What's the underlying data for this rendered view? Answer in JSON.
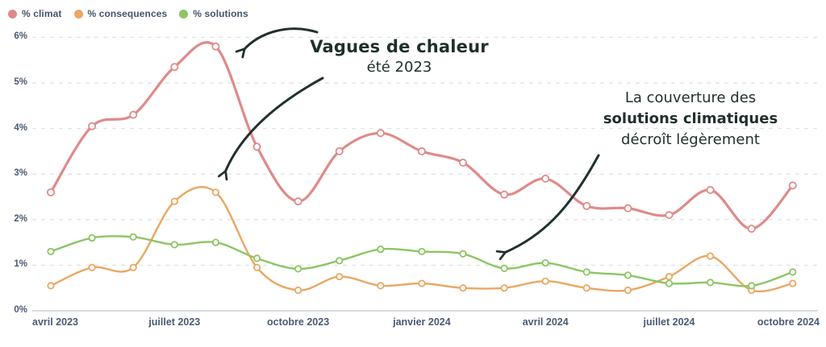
{
  "legend": {
    "items": [
      {
        "label": "% climat",
        "color": "#df8a8a"
      },
      {
        "label": "% consequences",
        "color": "#eaa763"
      },
      {
        "label": "% solutions",
        "color": "#8cc563"
      }
    ]
  },
  "annotations": {
    "heatwave": {
      "line1": "Vagues de chaleur",
      "line2": "été 2023"
    },
    "solutions": {
      "line1": "La couverture des",
      "line2": "solutions climatiques",
      "line3": "décroît légèrement"
    },
    "arrow_color": "#21312e"
  },
  "chart_data": {
    "type": "line",
    "title": "",
    "xlabel": "",
    "ylabel": "",
    "y_unit": "%",
    "ylim": [
      0,
      6
    ],
    "grid": "horizontal dashed",
    "legend_position": "top-left",
    "curve": "smooth",
    "markers": "open-circle",
    "x": [
      "avril 2023",
      "mai 2023",
      "juin 2023",
      "juillet 2023",
      "août 2023",
      "septembre 2023",
      "octobre 2023",
      "novembre 2023",
      "décembre 2023",
      "janvier 2024",
      "février 2024",
      "mars 2024",
      "avril 2024",
      "mai 2024",
      "juin 2024",
      "juillet 2024",
      "août 2024",
      "septembre 2024",
      "octobre 2024"
    ],
    "x_tick_labels": [
      "avril 2023",
      "juillet 2023",
      "octobre 2023",
      "janvier 2024",
      "avril 2024",
      "juillet 2024",
      "octobre 2024"
    ],
    "y_tick_labels": [
      "0%",
      "1%",
      "2%",
      "3%",
      "4%",
      "5%",
      "6%"
    ],
    "series": [
      {
        "name": "% climat",
        "color": "#df8a8a",
        "values": [
          2.6,
          4.05,
          4.3,
          5.35,
          5.8,
          3.6,
          2.4,
          3.5,
          3.9,
          3.5,
          3.25,
          2.55,
          2.9,
          2.3,
          2.25,
          2.1,
          2.65,
          1.8,
          2.75
        ]
      },
      {
        "name": "% consequences",
        "color": "#eaa763",
        "values": [
          0.55,
          0.95,
          0.95,
          2.4,
          2.6,
          0.95,
          0.45,
          0.75,
          0.55,
          0.6,
          0.5,
          0.5,
          0.65,
          0.5,
          0.45,
          0.75,
          1.2,
          0.45,
          0.6
        ]
      },
      {
        "name": "% solutions",
        "color": "#8cc563",
        "values": [
          1.3,
          1.6,
          1.62,
          1.45,
          1.5,
          1.15,
          0.92,
          1.1,
          1.35,
          1.3,
          1.25,
          0.93,
          1.05,
          0.85,
          0.78,
          0.6,
          0.62,
          0.55,
          0.85
        ]
      }
    ]
  }
}
